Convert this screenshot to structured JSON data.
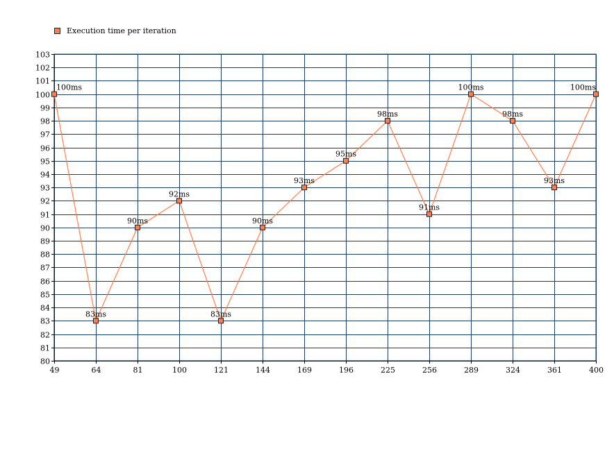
{
  "chart_data": {
    "type": "line",
    "title": "",
    "xlabel": "",
    "ylabel": "",
    "ylim": [
      80,
      103
    ],
    "yticks": [
      80,
      81,
      82,
      83,
      84,
      85,
      86,
      87,
      88,
      89,
      90,
      91,
      92,
      93,
      94,
      95,
      96,
      97,
      98,
      99,
      100,
      101,
      102,
      103
    ],
    "grid": true,
    "legend_position": "top-left",
    "categories": [
      "49",
      "64",
      "81",
      "100",
      "121",
      "144",
      "169",
      "196",
      "225",
      "256",
      "289",
      "324",
      "361",
      "400"
    ],
    "series": [
      {
        "name": "Execution time per iteration",
        "values": [
          100,
          83,
          90,
          92,
          83,
          90,
          93,
          95,
          98,
          91,
          100,
          98,
          93,
          100
        ],
        "labels": [
          "100ms",
          "83ms",
          "90ms",
          "92ms",
          "83ms",
          "90ms",
          "93ms",
          "95ms",
          "98ms",
          "91ms",
          "100ms",
          "98ms",
          "93ms",
          "100ms"
        ]
      }
    ]
  },
  "colors": {
    "series_line": "#ff7f50",
    "marker_fill": "#ff7f50",
    "marker_stroke": "#202020",
    "grid": "#1f3f5f",
    "axis": "#000000"
  }
}
